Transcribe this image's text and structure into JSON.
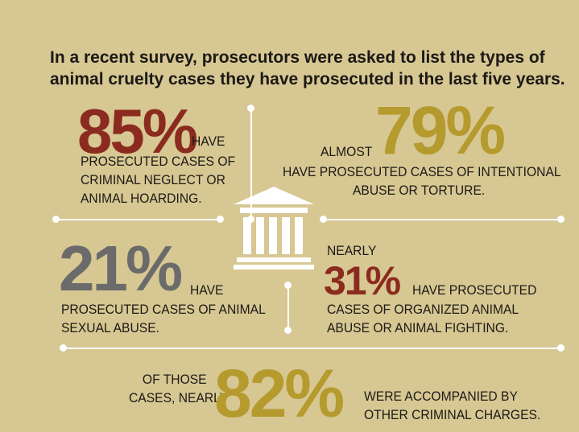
{
  "headline": {
    "line1": "In a recent survey, prosecutors were asked to list the types of",
    "line2": "animal cruelty cases they have prosecuted in the last five years."
  },
  "stats": {
    "s85": {
      "value": "85%",
      "suffix": "HAVE",
      "line1": "PROSECUTED CASES OF",
      "line2": "CRIMINAL NEGLECT OR",
      "line3": "ANIMAL HOARDING.",
      "color": "#8b2b1f"
    },
    "s79": {
      "prefix": "ALMOST",
      "value": "79%",
      "line1": "HAVE PROSECUTED CASES OF INTENTIONAL",
      "line2": "ABUSE OR TORTURE.",
      "color": "#b59a2e"
    },
    "s21": {
      "value": "21%",
      "suffix": "HAVE",
      "line1": "PROSECUTED CASES OF ANIMAL",
      "line2": "SEXUAL ABUSE.",
      "color": "#6b6b6b"
    },
    "s31": {
      "prefix": "NEARLY",
      "value": "31%",
      "suffix": "HAVE PROSECUTED",
      "line1": "CASES OF ORGANIZED ANIMAL",
      "line2": "ABUSE OR ANIMAL FIGHTING.",
      "color": "#8b2b1f"
    },
    "s82": {
      "pre1": "OF THOSE",
      "pre2": "CASES, NEARLY",
      "value": "82%",
      "line1": "WERE ACCOMPANIED BY",
      "line2": "OTHER CRIMINAL CHARGES.",
      "color": "#b59a2e"
    }
  },
  "icon": "courthouse-icon"
}
